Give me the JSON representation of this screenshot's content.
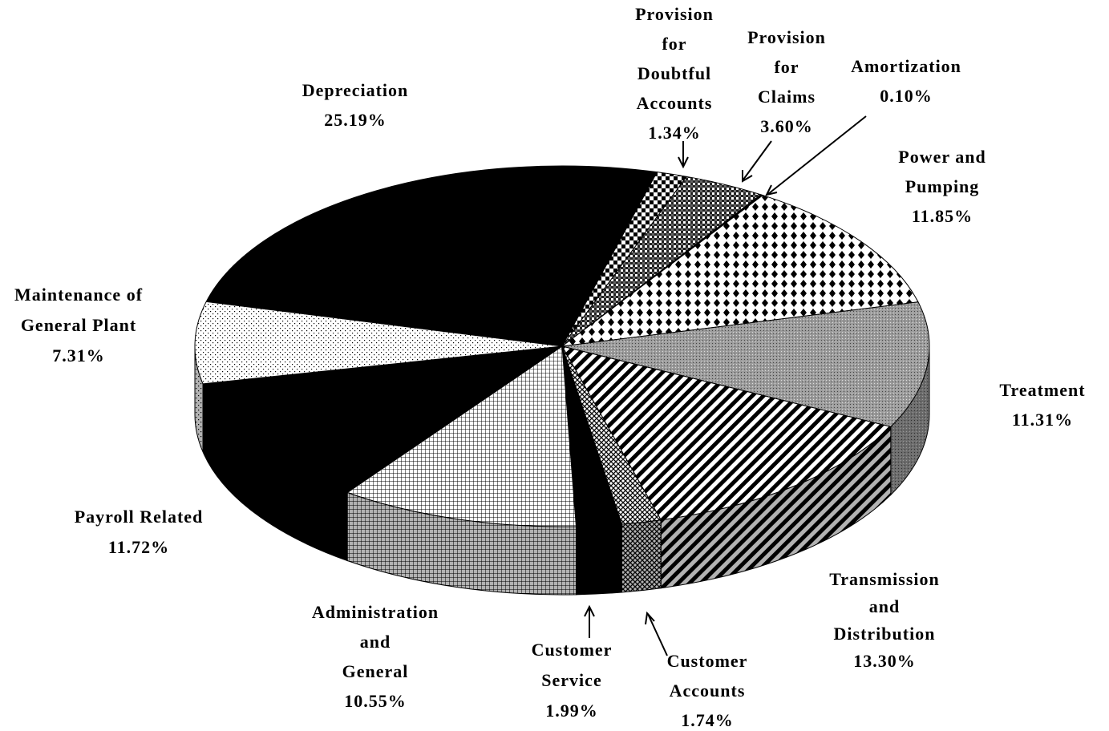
{
  "chart_data": {
    "type": "pie",
    "categories": [
      "Depreciation",
      "Provision for Doubtful Accounts",
      "Provision for Claims",
      "Amortization",
      "Power and Pumping",
      "Treatment",
      "Transmission and Distribution",
      "Customer Accounts",
      "Customer Service",
      "Administration and General",
      "Payroll Related",
      "Maintenance of General Plant"
    ],
    "values": [
      25.19,
      1.34,
      3.6,
      0.1,
      11.85,
      11.31,
      13.3,
      1.74,
      1.99,
      10.55,
      11.72,
      7.31
    ],
    "value_labels": [
      "25.19%",
      "1.34%",
      "3.60%",
      "0.10%",
      "11.85%",
      "11.31%",
      "13.30%",
      "1.74%",
      "1.99%",
      "10.55%",
      "11.72%",
      "7.31%"
    ]
  }
}
